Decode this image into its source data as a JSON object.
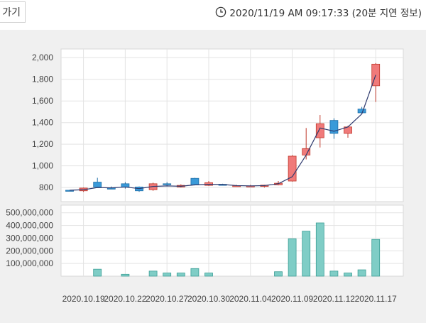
{
  "header": {
    "back_label": "가기",
    "timestamp": "2020/11/19 AM 09:17:33 (20분 지연 정보)",
    "clock_icon": "clock-icon"
  },
  "colors": {
    "up": "#f07a7a",
    "up_stroke": "#c0392b",
    "down": "#3a9ad9",
    "down_stroke": "#1f6fa8",
    "volume": "#7fcdc6",
    "volume_stroke": "#3c9f96",
    "ma_line": "#2e3a6e",
    "grid": "#e3e3e3"
  },
  "chart_data": {
    "type": "candlestick",
    "price_axis": {
      "ylim": [
        670,
        2080
      ],
      "ticks": [
        "800",
        "1,000",
        "1,200",
        "1,400",
        "1,600",
        "1,800",
        "2,000"
      ],
      "tick_values": [
        800,
        1000,
        1200,
        1400,
        1600,
        1800,
        2000
      ]
    },
    "volume_axis": {
      "ylim": [
        0,
        560000000
      ],
      "ticks": [
        "100,000,000",
        "200,000,000",
        "300,000,000",
        "400,000,000",
        "500,000,000"
      ],
      "tick_values": [
        100000000,
        200000000,
        300000000,
        400000000,
        500000000
      ]
    },
    "x_labels": [
      "2020.10.19",
      "2020.10.22",
      "2020.10.27",
      "2020.10.30",
      "2020.11.04",
      "2020.11.09",
      "2020.11.12",
      "2020.11.17"
    ],
    "x_label_indices": [
      1,
      4,
      7,
      10,
      13,
      16,
      19,
      22
    ],
    "candles": [
      {
        "o": 775,
        "h": 778,
        "l": 770,
        "c": 772
      },
      {
        "o": 770,
        "h": 800,
        "l": 760,
        "c": 795
      },
      {
        "o": 850,
        "h": 890,
        "l": 800,
        "c": 805
      },
      {
        "o": 795,
        "h": 810,
        "l": 785,
        "c": 790
      },
      {
        "o": 835,
        "h": 850,
        "l": 790,
        "c": 805
      },
      {
        "o": 805,
        "h": 810,
        "l": 760,
        "c": 770
      },
      {
        "o": 780,
        "h": 845,
        "l": 770,
        "c": 835
      },
      {
        "o": 835,
        "h": 850,
        "l": 810,
        "c": 830
      },
      {
        "o": 805,
        "h": 830,
        "l": 800,
        "c": 820
      },
      {
        "o": 885,
        "h": 890,
        "l": 820,
        "c": 825
      },
      {
        "o": 820,
        "h": 860,
        "l": 815,
        "c": 845
      },
      {
        "o": 830,
        "h": 835,
        "l": 820,
        "c": 825
      },
      {
        "o": 815,
        "h": 825,
        "l": 810,
        "c": 818
      },
      {
        "o": 812,
        "h": 825,
        "l": 805,
        "c": 815
      },
      {
        "o": 810,
        "h": 825,
        "l": 800,
        "c": 822
      },
      {
        "o": 825,
        "h": 860,
        "l": 820,
        "c": 840
      },
      {
        "o": 860,
        "h": 1100,
        "l": 855,
        "c": 1090
      },
      {
        "o": 1100,
        "h": 1350,
        "l": 1060,
        "c": 1160
      },
      {
        "o": 1260,
        "h": 1470,
        "l": 1170,
        "c": 1390
      },
      {
        "o": 1420,
        "h": 1440,
        "l": 1250,
        "c": 1300
      },
      {
        "o": 1300,
        "h": 1370,
        "l": 1260,
        "c": 1360
      },
      {
        "o": 1525,
        "h": 1545,
        "l": 1480,
        "c": 1490
      },
      {
        "o": 1740,
        "h": 1950,
        "l": 1590,
        "c": 1940
      }
    ],
    "moving_average": [
      775,
      780,
      800,
      797,
      805,
      790,
      810,
      815,
      812,
      825,
      830,
      828,
      818,
      815,
      818,
      835,
      900,
      1100,
      1350,
      1320,
      1360,
      1480,
      1840
    ],
    "volume": [
      0,
      0,
      55000000,
      0,
      15000000,
      0,
      40000000,
      25000000,
      25000000,
      60000000,
      25000000,
      0,
      0,
      0,
      0,
      35000000,
      295000000,
      355000000,
      420000000,
      40000000,
      25000000,
      50000000,
      290000000
    ]
  }
}
